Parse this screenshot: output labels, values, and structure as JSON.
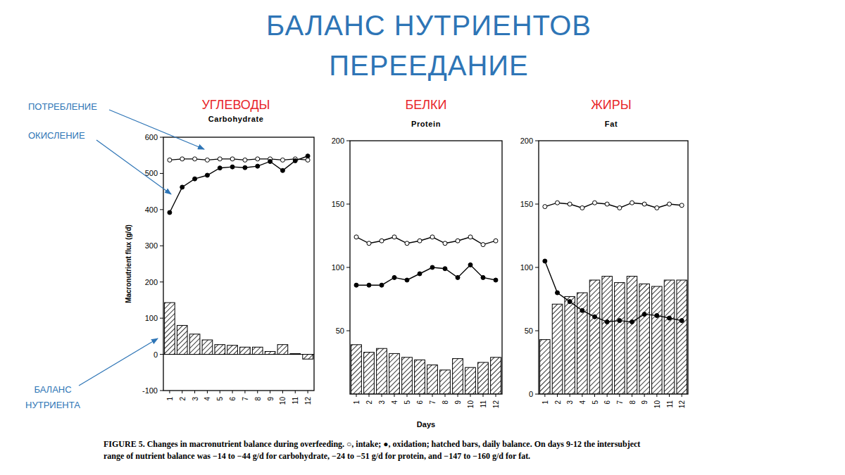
{
  "title": [
    "БАЛАНС НУТРИЕНТОВ",
    "ПЕРЕЕДАНИЕ"
  ],
  "annotations": [
    "ПОТРЕБЛЕНИЕ",
    "ОКИСЛЕНИЕ",
    "БАЛАНС НУТРИЕНТА"
  ],
  "caption": [
    "FIGURE 5. Changes in macronutrient balance during overfeeding. ○, intake; ●, oxidation; hatched bars, daily balance. On days 9-12 the intersubject",
    "range of nutrient balance was −14 to −44 g/d for carbohydrate, −24 to −51 g/d for protein, and −147 to −160 g/d for fat."
  ],
  "chart_data": [
    {
      "type": "bar",
      "title": "УГЛЕВОДЫ",
      "subtitle": "Carbohydrate",
      "y_label": "Macronutrient flux (g/d)",
      "categories": [
        "1",
        "2",
        "3",
        "4",
        "5",
        "6",
        "7",
        "8",
        "9",
        "10",
        "11",
        "12"
      ],
      "series": [
        {
          "type": "line",
          "marker": "open-circle",
          "color": "#000000",
          "values": [
            537,
            540,
            540,
            537,
            540,
            540,
            537,
            540,
            540,
            537,
            540,
            537
          ]
        },
        {
          "type": "line",
          "marker": "filled-circle",
          "color": "#000000",
          "values": [
            392,
            462,
            485,
            495,
            515,
            518,
            516,
            520,
            533,
            508,
            535,
            548
          ]
        },
        {
          "type": "bar",
          "color": "#000000",
          "values": [
            143,
            80,
            56,
            40,
            27,
            25,
            20,
            20,
            8,
            27,
            2,
            -13
          ]
        }
      ],
      "ylim": [
        -100,
        600
      ],
      "yticks": [
        -100,
        0,
        100,
        200,
        300,
        400,
        500,
        600
      ],
      "grid": false
    },
    {
      "type": "bar",
      "title": "БЕЛКИ",
      "subtitle": "Protein",
      "x_label": "Days",
      "categories": [
        "1",
        "2",
        "3",
        "4",
        "5",
        "6",
        "7",
        "8",
        "9",
        "10",
        "11",
        "12"
      ],
      "series": [
        {
          "type": "line",
          "marker": "open-circle",
          "color": "#000000",
          "values": [
            124,
            119,
            121,
            124,
            119,
            121,
            124,
            119,
            121,
            124,
            118,
            121
          ]
        },
        {
          "type": "line",
          "marker": "filled-circle",
          "color": "#000000",
          "values": [
            86,
            86,
            86,
            92,
            90,
            95,
            100,
            99,
            92,
            102,
            92,
            90
          ]
        },
        {
          "type": "bar",
          "color": "#000000",
          "values": [
            39,
            33,
            36,
            32,
            29,
            27,
            23,
            19,
            28,
            21,
            25,
            29
          ]
        }
      ],
      "ylim": [
        0,
        200
      ],
      "yticks": [
        50,
        100,
        150,
        200
      ],
      "grid": false
    },
    {
      "type": "bar",
      "title": "ЖИРЫ",
      "subtitle": "Fat",
      "categories": [
        "1",
        "2",
        "3",
        "4",
        "5",
        "6",
        "7",
        "8",
        "9",
        "10",
        "11",
        "12"
      ],
      "series": [
        {
          "type": "line",
          "marker": "open-circle",
          "color": "#000000",
          "values": [
            148,
            151,
            150,
            147,
            151,
            150,
            147,
            151,
            150,
            147,
            150,
            149
          ]
        },
        {
          "type": "line",
          "marker": "filled-circle",
          "color": "#000000",
          "values": [
            105,
            80,
            73,
            66,
            61,
            57,
            58,
            57,
            63,
            62,
            60,
            58
          ]
        },
        {
          "type": "bar",
          "color": "#000000",
          "values": [
            43,
            71,
            77,
            80,
            90,
            93,
            88,
            93,
            87,
            85,
            90,
            90
          ]
        }
      ],
      "ylim": [
        0,
        200
      ],
      "yticks": [
        0,
        50,
        100,
        150,
        200
      ],
      "grid": false
    }
  ]
}
